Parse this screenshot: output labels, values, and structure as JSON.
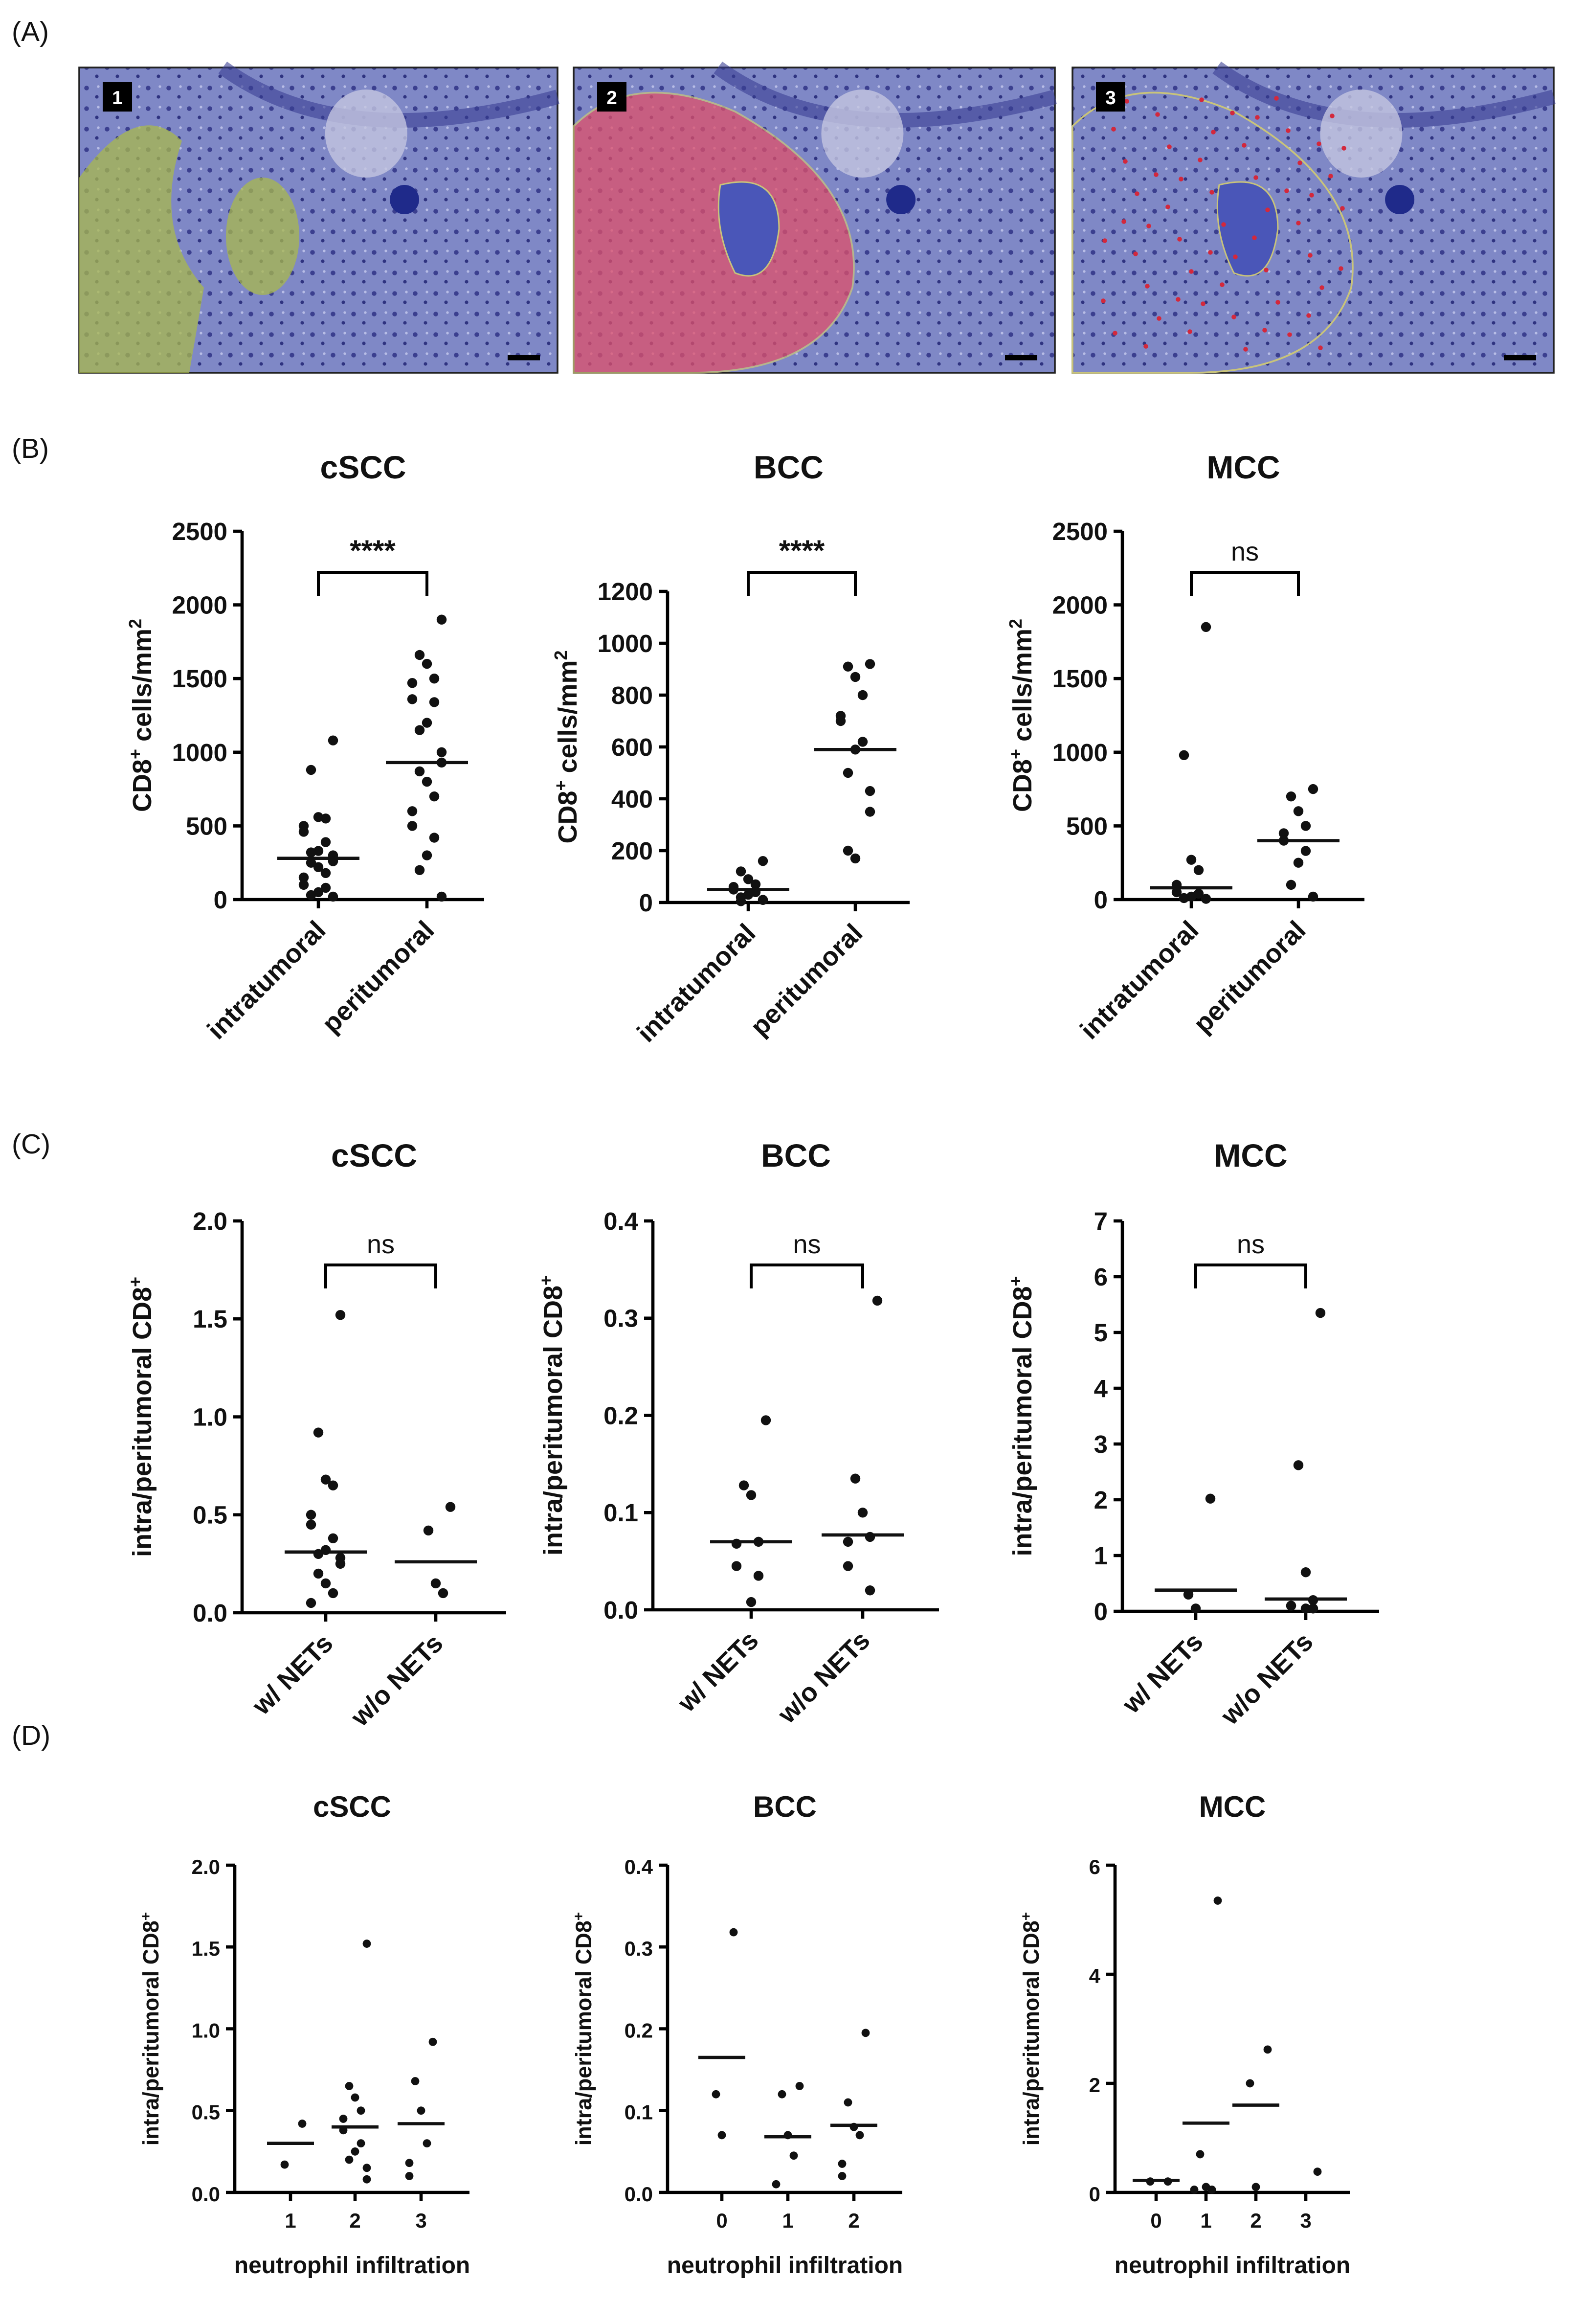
{
  "panel_labels": [
    "(A)",
    "(B)",
    "(C)",
    "(D)"
  ],
  "images": [
    {
      "label": "1"
    },
    {
      "label": "2"
    },
    {
      "label": "3"
    }
  ],
  "chart_data": [
    {
      "type": "dotplot",
      "title": "cSCC",
      "ylabel": [
        {
          "text": "CD8"
        },
        {
          "text": "+",
          "sup": true
        },
        {
          "text": " cells/mm"
        },
        {
          "text": "2",
          "sup": true
        }
      ],
      "categories": [
        "intratumoral",
        "peritumoral"
      ],
      "significance": "****",
      "color": "#111",
      "values": [
        [
          1080,
          880,
          560,
          550,
          500,
          460,
          390,
          330,
          320,
          300,
          260,
          250,
          220,
          180,
          150,
          100,
          80,
          50,
          30,
          20
        ],
        [
          1900,
          1660,
          1600,
          1500,
          1470,
          1360,
          1340,
          1200,
          1150,
          1000,
          930,
          870,
          800,
          700,
          600,
          500,
          420,
          300,
          200,
          20
        ]
      ],
      "medians": [
        280,
        930
      ],
      "ylim": [
        0,
        2500
      ],
      "yticks": [
        0,
        500,
        1000,
        1500,
        2000,
        2500
      ]
    },
    {
      "type": "dotplot",
      "title": "BCC",
      "ylabel": [
        {
          "text": "CD8"
        },
        {
          "text": "+",
          "sup": true
        },
        {
          "text": " cells/mm"
        },
        {
          "text": "2",
          "sup": true
        }
      ],
      "categories": [
        "intratumoral",
        "peritumoral"
      ],
      "significance": "****",
      "color": "#111",
      "values": [
        [
          160,
          120,
          90,
          70,
          60,
          50,
          40,
          30,
          20,
          10,
          10,
          5
        ],
        [
          920,
          910,
          870,
          800,
          720,
          700,
          620,
          590,
          500,
          430,
          350,
          200,
          170
        ]
      ],
      "medians": [
        50,
        590
      ],
      "ylim": [
        0,
        1200
      ],
      "yticks": [
        0,
        200,
        400,
        600,
        800,
        1000,
        1200
      ]
    },
    {
      "type": "dotplot",
      "title": "MCC",
      "ylabel": [
        {
          "text": "CD8"
        },
        {
          "text": "+",
          "sup": true
        },
        {
          "text": " cells/mm"
        },
        {
          "text": "2",
          "sup": true
        }
      ],
      "categories": [
        "intratumoral",
        "peritumoral"
      ],
      "significance": "ns",
      "color": "#111",
      "values": [
        [
          1850,
          980,
          270,
          200,
          100,
          50,
          40,
          20,
          10,
          5
        ],
        [
          750,
          700,
          600,
          500,
          450,
          400,
          330,
          250,
          100,
          20
        ]
      ],
      "medians": [
        80,
        400
      ],
      "ylim": [
        0,
        2500
      ],
      "yticks": [
        0,
        500,
        1000,
        1500,
        2000,
        2500
      ]
    },
    {
      "type": "dotplot",
      "title": "cSCC",
      "ylabel": [
        {
          "text": "intra/peritumoral CD8"
        },
        {
          "text": "+",
          "sup": true
        }
      ],
      "categories": [
        "w/ NETs",
        "w/o NETs"
      ],
      "significance": "ns",
      "color": "#111",
      "values": [
        [
          1.52,
          0.92,
          0.68,
          0.65,
          0.5,
          0.45,
          0.38,
          0.32,
          0.3,
          0.28,
          0.25,
          0.2,
          0.15,
          0.1,
          0.05
        ],
        [
          0.54,
          0.42,
          0.15,
          0.1
        ]
      ],
      "medians": [
        0.31,
        0.26
      ],
      "ylim": [
        0,
        2
      ],
      "yticks": [
        {
          "value": 0,
          "label": "0.0"
        },
        0.5,
        {
          "value": 1,
          "label": "1.0"
        },
        1.5,
        {
          "value": 2,
          "label": "2.0"
        }
      ]
    },
    {
      "type": "dotplot",
      "title": "BCC",
      "ylabel": [
        {
          "text": "intra/peritumoral CD8"
        },
        {
          "text": "+",
          "sup": true
        }
      ],
      "categories": [
        "w/ NETs",
        "w/o NETs"
      ],
      "significance": "ns",
      "color": "#111",
      "values": [
        [
          0.195,
          0.128,
          0.118,
          0.07,
          0.068,
          0.045,
          0.035,
          0.008
        ],
        [
          0.318,
          0.135,
          0.1,
          0.075,
          0.07,
          0.045,
          0.02
        ]
      ],
      "medians": [
        0.07,
        0.077
      ],
      "ylim": [
        0,
        0.4
      ],
      "yticks": [
        {
          "value": 0,
          "label": "0.0"
        },
        0.1,
        0.2,
        0.3,
        0.4
      ]
    },
    {
      "type": "dotplot",
      "title": "MCC",
      "ylabel": [
        {
          "text": "intra/peritumoral CD8"
        },
        {
          "text": "+",
          "sup": true
        }
      ],
      "categories": [
        "w/ NETs",
        "w/o NETs"
      ],
      "significance": "ns",
      "color": "#111",
      "values": [
        [
          2.02,
          0.3,
          0.05
        ],
        [
          5.35,
          2.62,
          0.7,
          0.2,
          0.1,
          0.1,
          0.05,
          0.05
        ]
      ],
      "medians": [
        0.38,
        0.22
      ],
      "ylim": [
        0,
        7
      ],
      "yticks": [
        0,
        1,
        2,
        3,
        4,
        5,
        6,
        7
      ]
    },
    {
      "type": "dotplot",
      "title": "cSCC",
      "ylabel": [
        {
          "text": "intra/peritumoral CD8"
        },
        {
          "text": "+",
          "sup": true
        }
      ],
      "xlabel": "neutrophil infiltration",
      "categories": [
        "1",
        "2",
        "3"
      ],
      "color": "#111",
      "values": [
        [
          0.42,
          0.17
        ],
        [
          1.52,
          0.65,
          0.58,
          0.5,
          0.45,
          0.38,
          0.3,
          0.25,
          0.2,
          0.15,
          0.08
        ],
        [
          0.92,
          0.68,
          0.5,
          0.3,
          0.18,
          0.1
        ]
      ],
      "medians": [
        0.3,
        0.4,
        0.42
      ],
      "ylim": [
        0,
        2
      ],
      "yticks": [
        {
          "value": 0,
          "label": "0.0"
        },
        0.5,
        {
          "value": 1,
          "label": "1.0"
        },
        1.5,
        {
          "value": 2,
          "label": "2.0"
        }
      ]
    },
    {
      "type": "dotplot",
      "title": "BCC",
      "ylabel": [
        {
          "text": "intra/peritumoral CD8"
        },
        {
          "text": "+",
          "sup": true
        }
      ],
      "xlabel": "neutrophil infiltration",
      "categories": [
        "0",
        "1",
        "2"
      ],
      "color": "#111",
      "values": [
        [
          0.318,
          0.12,
          0.07
        ],
        [
          0.13,
          0.12,
          0.07,
          0.045,
          0.01
        ],
        [
          0.195,
          0.11,
          0.08,
          0.07,
          0.035,
          0.02
        ]
      ],
      "medians": [
        0.165,
        0.068,
        0.082
      ],
      "ylim": [
        0,
        0.4
      ],
      "yticks": [
        {
          "value": 0,
          "label": "0.0"
        },
        0.1,
        0.2,
        0.3,
        0.4
      ]
    },
    {
      "type": "dotplot",
      "title": "MCC",
      "ylabel": [
        {
          "text": "intra/peritumoral CD8"
        },
        {
          "text": "+",
          "sup": true
        }
      ],
      "xlabel": "neutrophil infiltration",
      "categories": [
        "0",
        "1",
        "2",
        "3"
      ],
      "color": "#111",
      "values": [
        [
          0.2,
          0.2
        ],
        [
          5.35,
          0.7,
          0.1,
          0.05,
          0.05
        ],
        [
          2.62,
          2.0,
          0.1
        ],
        [
          0.38
        ]
      ],
      "medians": [
        0.22,
        1.27,
        1.6,
        null
      ],
      "ylim": [
        0,
        6
      ],
      "yticks": [
        0,
        2,
        4,
        6
      ]
    }
  ]
}
